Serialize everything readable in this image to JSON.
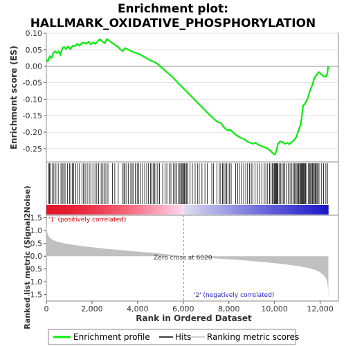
{
  "chart_data": {
    "type": "line",
    "title_line1": "Enrichment plot:",
    "title_line2": "HALLMARK_OXIDATIVE_PHOSPHORYLATION",
    "es_panel": {
      "ylabel": "Enrichment score (ES)",
      "ylim": [
        -0.29,
        0.1
      ],
      "yticks": [
        "0.10",
        "0.05",
        "0.00",
        "-0.05",
        "-0.10",
        "-0.15",
        "-0.20",
        "-0.25"
      ],
      "ytick_values": [
        0.1,
        0.05,
        0.0,
        -0.05,
        -0.1,
        -0.15,
        -0.2,
        -0.25
      ],
      "series_name": "Enrichment profile",
      "color": "#00ee00",
      "points": [
        [
          0,
          0.02
        ],
        [
          60,
          0.015
        ],
        [
          150,
          0.03
        ],
        [
          230,
          0.025
        ],
        [
          300,
          0.04
        ],
        [
          380,
          0.045
        ],
        [
          460,
          0.04
        ],
        [
          540,
          0.045
        ],
        [
          620,
          0.035
        ],
        [
          700,
          0.055
        ],
        [
          780,
          0.058
        ],
        [
          860,
          0.052
        ],
        [
          950,
          0.06
        ],
        [
          1050,
          0.052
        ],
        [
          1150,
          0.062
        ],
        [
          1250,
          0.06
        ],
        [
          1350,
          0.068
        ],
        [
          1450,
          0.062
        ],
        [
          1550,
          0.07
        ],
        [
          1650,
          0.072
        ],
        [
          1750,
          0.068
        ],
        [
          1850,
          0.074
        ],
        [
          1950,
          0.066
        ],
        [
          2050,
          0.072
        ],
        [
          2150,
          0.068
        ],
        [
          2250,
          0.076
        ],
        [
          2350,
          0.082
        ],
        [
          2450,
          0.075
        ],
        [
          2550,
          0.07
        ],
        [
          2650,
          0.082
        ],
        [
          2750,
          0.078
        ],
        [
          2850,
          0.072
        ],
        [
          2950,
          0.068
        ],
        [
          3050,
          0.062
        ],
        [
          3150,
          0.058
        ],
        [
          3250,
          0.05
        ],
        [
          3350,
          0.046
        ],
        [
          3450,
          0.055
        ],
        [
          3550,
          0.052
        ],
        [
          3650,
          0.048
        ],
        [
          3750,
          0.045
        ],
        [
          3850,
          0.042
        ],
        [
          3950,
          0.04
        ],
        [
          4050,
          0.037
        ],
        [
          4150,
          0.034
        ],
        [
          4250,
          0.03
        ],
        [
          4350,
          0.026
        ],
        [
          4450,
          0.022
        ],
        [
          4550,
          0.018
        ],
        [
          4650,
          0.015
        ],
        [
          4750,
          0.012
        ],
        [
          4850,
          0.008
        ],
        [
          4950,
          0.002
        ],
        [
          5050,
          -0.004
        ],
        [
          5150,
          -0.01
        ],
        [
          5250,
          -0.016
        ],
        [
          5350,
          -0.022
        ],
        [
          5450,
          -0.028
        ],
        [
          5550,
          -0.035
        ],
        [
          5650,
          -0.042
        ],
        [
          5750,
          -0.049
        ],
        [
          5850,
          -0.056
        ],
        [
          5950,
          -0.063
        ],
        [
          6050,
          -0.07
        ],
        [
          6150,
          -0.077
        ],
        [
          6250,
          -0.084
        ],
        [
          6350,
          -0.091
        ],
        [
          6450,
          -0.098
        ],
        [
          6550,
          -0.105
        ],
        [
          6650,
          -0.112
        ],
        [
          6750,
          -0.119
        ],
        [
          6850,
          -0.126
        ],
        [
          6950,
          -0.133
        ],
        [
          7050,
          -0.14
        ],
        [
          7150,
          -0.147
        ],
        [
          7250,
          -0.153
        ],
        [
          7350,
          -0.16
        ],
        [
          7450,
          -0.166
        ],
        [
          7550,
          -0.17
        ],
        [
          7650,
          -0.172
        ],
        [
          7750,
          -0.182
        ],
        [
          7850,
          -0.19
        ],
        [
          7950,
          -0.194
        ],
        [
          8050,
          -0.192
        ],
        [
          8150,
          -0.198
        ],
        [
          8250,
          -0.205
        ],
        [
          8350,
          -0.21
        ],
        [
          8450,
          -0.214
        ],
        [
          8550,
          -0.218
        ],
        [
          8650,
          -0.22
        ],
        [
          8750,
          -0.225
        ],
        [
          8850,
          -0.23
        ],
        [
          8950,
          -0.232
        ],
        [
          9050,
          -0.235
        ],
        [
          9150,
          -0.232
        ],
        [
          9250,
          -0.236
        ],
        [
          9350,
          -0.24
        ],
        [
          9450,
          -0.243
        ],
        [
          9550,
          -0.245
        ],
        [
          9650,
          -0.248
        ],
        [
          9750,
          -0.252
        ],
        [
          9850,
          -0.258
        ],
        [
          9950,
          -0.265
        ],
        [
          10020,
          -0.268
        ],
        [
          10100,
          -0.252
        ],
        [
          10150,
          -0.235
        ],
        [
          10250,
          -0.228
        ],
        [
          10350,
          -0.23
        ],
        [
          10450,
          -0.235
        ],
        [
          10550,
          -0.232
        ],
        [
          10650,
          -0.236
        ],
        [
          10750,
          -0.23
        ],
        [
          10850,
          -0.225
        ],
        [
          10950,
          -0.215
        ],
        [
          11050,
          -0.195
        ],
        [
          11150,
          -0.175
        ],
        [
          11200,
          -0.15
        ],
        [
          11250,
          -0.12
        ],
        [
          11350,
          -0.112
        ],
        [
          11450,
          -0.098
        ],
        [
          11550,
          -0.075
        ],
        [
          11650,
          -0.058
        ],
        [
          11750,
          -0.035
        ],
        [
          11850,
          -0.025
        ],
        [
          11950,
          -0.018
        ],
        [
          12050,
          -0.025
        ],
        [
          12150,
          -0.03
        ],
        [
          12250,
          -0.032
        ],
        [
          12320,
          -0.02
        ],
        [
          12350,
          0.0
        ]
      ]
    },
    "hits_panel": {
      "series_name": "Hits",
      "hit_ranks": [
        110,
        140,
        200,
        270,
        330,
        420,
        520,
        640,
        700,
        760,
        820,
        930,
        1010,
        1080,
        1140,
        1200,
        1290,
        1380,
        1450,
        1560,
        1630,
        1700,
        1790,
        1880,
        1950,
        2040,
        2130,
        2210,
        2290,
        2400,
        2480,
        2550,
        2610,
        2700,
        2900,
        3000,
        3150,
        3330,
        3400,
        3450,
        3520,
        3600,
        3700,
        3760,
        3820,
        3900,
        3980,
        4050,
        4130,
        4220,
        4310,
        4400,
        4480,
        4560,
        4620,
        4680,
        4740,
        4800,
        4880,
        4960,
        5100,
        5200,
        5280,
        5380,
        5460,
        5560,
        5640,
        5720,
        5790,
        5850,
        5900,
        5940,
        5980,
        6010,
        6050,
        6100,
        6150,
        6200,
        6300,
        6400,
        6520,
        6620,
        6700,
        6820,
        6950,
        7050,
        7250,
        7320,
        7480,
        7580,
        7640,
        7720,
        7780,
        7830,
        7900,
        7960,
        8030,
        8100,
        8300,
        8380,
        8460,
        8560,
        8650,
        8740,
        8820,
        8900,
        8980,
        9050,
        9150,
        9250,
        9350,
        9450,
        9550,
        9620,
        9700,
        9780,
        9850,
        9900,
        9950,
        9990,
        10030,
        10060,
        10090,
        10120,
        10150,
        10200,
        10260,
        10320,
        10380,
        10450,
        10520,
        10600,
        10680,
        10760,
        10830,
        10880,
        10930,
        10980,
        11020,
        11060,
        11100,
        11140,
        11170,
        11200,
        11230,
        11260,
        11290,
        11320,
        11360,
        11420,
        11480,
        11540,
        11580,
        11620,
        11660,
        11700,
        11740,
        11780,
        11820,
        11860,
        11900,
        11950,
        12050,
        12150,
        12250,
        12320
      ]
    },
    "metric_panel": {
      "ylabel": "Ranked list metric (Signal2Noise)",
      "ylim": [
        -1.75,
        1.6
      ],
      "yticks": [
        "1.5",
        "1.0",
        "0.5",
        "0.0",
        "-0.5",
        "-1.0",
        "-1.5"
      ],
      "ytick_values": [
        1.5,
        1.0,
        0.5,
        0.0,
        -0.5,
        -1.0,
        -1.5
      ],
      "series_name": "Ranking metric scores",
      "color": "#c0c0c0",
      "profile": [
        [
          0,
          1.3
        ],
        [
          20,
          1.0
        ],
        [
          60,
          0.85
        ],
        [
          150,
          0.72
        ],
        [
          300,
          0.63
        ],
        [
          500,
          0.56
        ],
        [
          800,
          0.5
        ],
        [
          1200,
          0.44
        ],
        [
          1600,
          0.39
        ],
        [
          2000,
          0.35
        ],
        [
          2500,
          0.3
        ],
        [
          3000,
          0.26
        ],
        [
          3500,
          0.22
        ],
        [
          4000,
          0.18
        ],
        [
          4500,
          0.14
        ],
        [
          5000,
          0.1
        ],
        [
          5500,
          0.05
        ],
        [
          6020,
          0.0
        ],
        [
          6500,
          -0.03
        ],
        [
          7000,
          -0.06
        ],
        [
          7500,
          -0.09
        ],
        [
          8000,
          -0.12
        ],
        [
          8500,
          -0.15
        ],
        [
          9000,
          -0.19
        ],
        [
          9500,
          -0.23
        ],
        [
          10000,
          -0.27
        ],
        [
          10500,
          -0.32
        ],
        [
          11000,
          -0.38
        ],
        [
          11500,
          -0.46
        ],
        [
          11800,
          -0.54
        ],
        [
          12000,
          -0.62
        ],
        [
          12200,
          -0.78
        ],
        [
          12300,
          -0.95
        ],
        [
          12350,
          -1.3
        ],
        [
          12360,
          -1.7
        ]
      ],
      "zero_cross_label": "Zero cross at 6020",
      "zero_cross_rank": 6020,
      "positive_label": "'1' (positively correlated)",
      "negative_label": "'2' (negatively correlated)"
    },
    "xaxis": {
      "xlabel": "Rank in Ordered Dataset",
      "xlim": [
        0,
        12800
      ],
      "ticks": [
        "0",
        "2,000",
        "4,000",
        "6,000",
        "8,000",
        "10,000",
        "12,000"
      ],
      "tick_values": [
        0,
        2000,
        4000,
        6000,
        8000,
        10000,
        12000
      ],
      "n_genes": 12360
    },
    "legend": {
      "items": [
        {
          "label": "Enrichment profile",
          "color": "#00ee00"
        },
        {
          "label": "Hits",
          "color": "#000000"
        },
        {
          "label": "Ranking metric scores",
          "color": "#c0c0c0"
        }
      ]
    }
  }
}
